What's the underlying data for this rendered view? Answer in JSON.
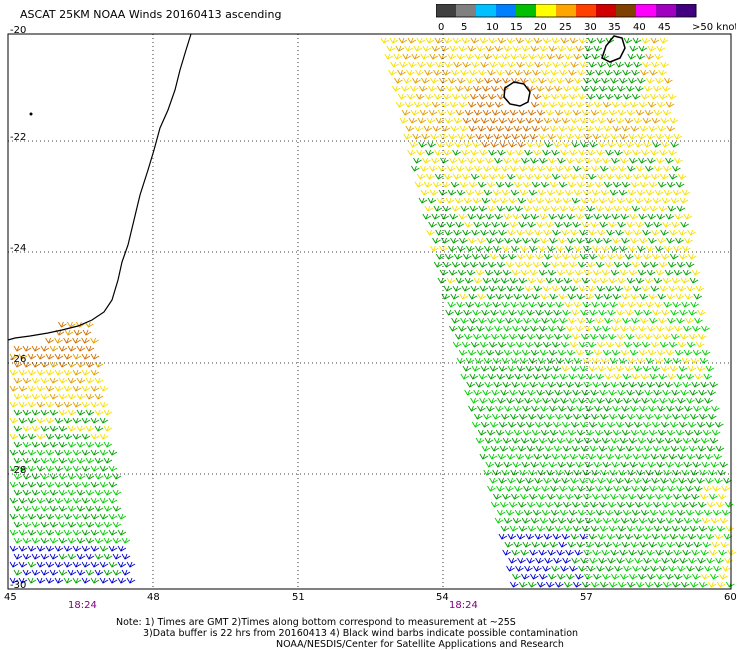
{
  "title": "ASCAT 25KM NOAA Winds 20160413 ascending",
  "colorbar": {
    "labels": [
      "0",
      "5",
      "10",
      "15",
      "20",
      "25",
      "30",
      "35",
      "40",
      "45",
      ">50 knots"
    ],
    "colors": [
      "#404040",
      "#808080",
      "#00c0ff",
      "#0080ff",
      "#00c000",
      "#ffff00",
      "#ffa500",
      "#ff4000",
      "#d00000",
      "#804000",
      "#ff00ff",
      "#a000c0",
      "#400080"
    ]
  },
  "map": {
    "lat_labels": [
      "-20",
      "-22",
      "-24",
      "-26",
      "-28",
      "-30"
    ],
    "lon_labels": [
      "45",
      "48",
      "51",
      "54",
      "57",
      "60"
    ],
    "time_labels": [
      "18:24",
      "18:24"
    ],
    "barb_colors": {
      "green": "#00a000",
      "lime": "#00d000",
      "yellow": "#f5e000",
      "orange": "#e0a000",
      "darkorange": "#d07000",
      "blue": "#0000d0"
    }
  },
  "notes": {
    "line1": "Note: 1) Times are GMT 2)Times along bottom correspond to measurement at ~25S",
    "line2": "3)Data buffer is 22 hrs from 20160413 4) Black wind barbs indicate possible contamination",
    "line3": "NOAA/NESDIS/Center for Satellite Applications and Research"
  }
}
